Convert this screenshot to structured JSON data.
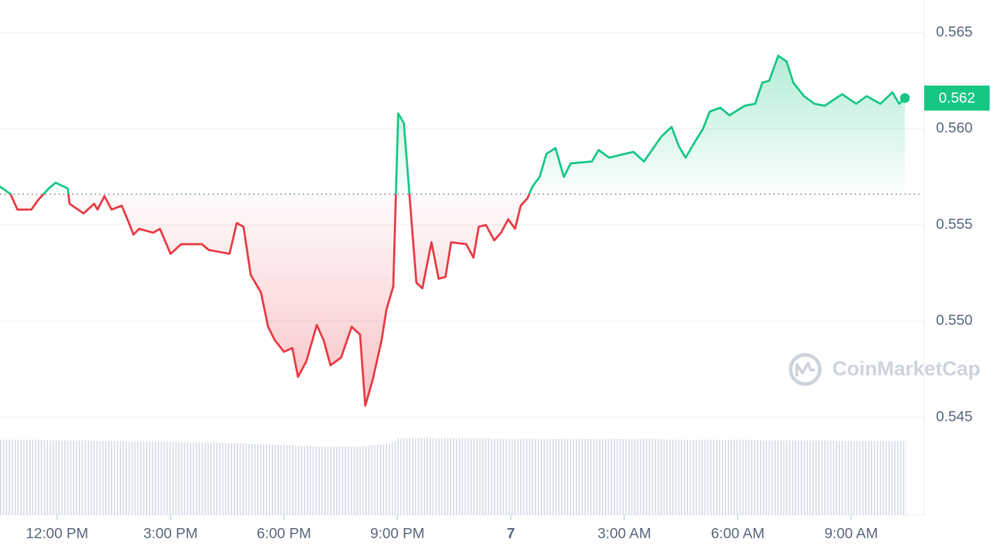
{
  "chart_data": {
    "type": "line",
    "x": [
      10.49,
      10.77,
      10.95,
      11.32,
      11.5,
      11.78,
      11.96,
      12.28,
      12.33,
      12.7,
      12.98,
      13.07,
      13.25,
      13.44,
      13.71,
      13.9,
      14.02,
      14.17,
      14.54,
      14.72,
      15.0,
      15.28,
      15.83,
      16.01,
      16.56,
      16.75,
      16.93,
      17.12,
      17.39,
      17.58,
      17.76,
      18.0,
      18.22,
      18.37,
      18.59,
      18.87,
      19.05,
      19.23,
      19.51,
      19.79,
      20.01,
      20.15,
      20.34,
      20.58,
      20.71,
      20.89,
      21.02,
      21.17,
      21.5,
      21.66,
      21.9,
      22.09,
      22.27,
      22.42,
      22.82,
      23.01,
      23.15,
      23.34,
      23.56,
      23.74,
      23.93,
      24.11,
      24.26,
      24.44,
      24.57,
      24.76,
      24.94,
      25.18,
      25.4,
      25.58,
      26.14,
      26.32,
      26.6,
      27.24,
      27.52,
      27.98,
      28.25,
      28.44,
      28.62,
      28.86,
      29.08,
      29.26,
      29.54,
      29.78,
      30.18,
      30.46,
      30.65,
      30.83,
      31.07,
      31.29,
      31.47,
      31.75,
      32.03,
      32.3,
      32.76,
      33.13,
      33.41,
      33.77,
      34.09,
      34.27,
      34.42
    ],
    "series": [
      {
        "values": [
          0.557,
          0.5566,
          0.5558,
          0.5558,
          0.5563,
          0.5569,
          0.5572,
          0.5569,
          0.5561,
          0.5556,
          0.5561,
          0.5558,
          0.5565,
          0.5558,
          0.556,
          0.5551,
          0.5545,
          0.5548,
          0.5546,
          0.5548,
          0.5535,
          0.554,
          0.554,
          0.5537,
          0.5535,
          0.5551,
          0.5549,
          0.5524,
          0.5515,
          0.5497,
          0.549,
          0.5484,
          0.5486,
          0.5471,
          0.5479,
          0.5498,
          0.549,
          0.5477,
          0.5481,
          0.5497,
          0.5493,
          0.5456,
          0.5469,
          0.549,
          0.5506,
          0.5518,
          0.5608,
          0.5603,
          0.552,
          0.5517,
          0.5541,
          0.5522,
          0.5523,
          0.5541,
          0.554,
          0.5533,
          0.5549,
          0.555,
          0.5542,
          0.5546,
          0.5553,
          0.5548,
          0.556,
          0.5564,
          0.557,
          0.5575,
          0.5587,
          0.559,
          0.5575,
          0.5582,
          0.5583,
          0.5589,
          0.5585,
          0.5588,
          0.5583,
          0.5596,
          0.5601,
          0.5591,
          0.5585,
          0.5593,
          0.56,
          0.5609,
          0.5611,
          0.5607,
          0.5612,
          0.5613,
          0.5624,
          0.5625,
          0.5638,
          0.5635,
          0.5624,
          0.5617,
          0.5613,
          0.5612,
          0.5618,
          0.5613,
          0.5617,
          0.5613,
          0.5619,
          0.5613,
          0.5616
        ],
        "color_up": "#16c784",
        "color_down": "#ea3943"
      }
    ],
    "volume": {
      "values": [
        108,
        108,
        108,
        108,
        108,
        107,
        107,
        107,
        107,
        107,
        106,
        106,
        106,
        106,
        106,
        105,
        105,
        105,
        105,
        105,
        105,
        104,
        104,
        104,
        103,
        103,
        103,
        102,
        102,
        101,
        101,
        100,
        100,
        99,
        99,
        98,
        98,
        98,
        98,
        98,
        98,
        99,
        100,
        101,
        102,
        105,
        110,
        110,
        110,
        110,
        110,
        110,
        110,
        110,
        110,
        110,
        110,
        110,
        109,
        109,
        109,
        109,
        109,
        109,
        109,
        109,
        109,
        109,
        109,
        109,
        109,
        109,
        109,
        109,
        109,
        109,
        108,
        108,
        108,
        108,
        108,
        108,
        108,
        108,
        108,
        108,
        107,
        107,
        107,
        107,
        107,
        107,
        107,
        107,
        106,
        106,
        106,
        106,
        106,
        106,
        106
      ],
      "ylim": [
        0,
        120
      ],
      "color": "#cfd6e4"
    },
    "baseline": 0.5566,
    "current_price": {
      "value": 0.5616,
      "label": "0.562"
    },
    "xlim": [
      10.49,
      34.93
    ],
    "ylim": [
      0.5447,
      0.5667
    ],
    "yticks": [
      0.545,
      {
        "value": 0.55,
        "label": "0.550"
      },
      0.555,
      {
        "value": 0.56,
        "label": "0.560"
      },
      0.565
    ],
    "xticks": [
      {
        "value": 12,
        "label": "12:00 PM"
      },
      {
        "value": 15,
        "label": "3:00 PM"
      },
      {
        "value": 18,
        "label": "6:00 PM"
      },
      {
        "value": 21,
        "label": "9:00 PM"
      },
      {
        "value": 24,
        "label": "7"
      },
      {
        "value": 27,
        "label": "3:00 AM"
      },
      {
        "value": 30,
        "label": "6:00 AM"
      },
      {
        "value": 33,
        "label": "9:00 AM"
      }
    ],
    "grid": true,
    "watermark": "CoinMarketCap"
  }
}
